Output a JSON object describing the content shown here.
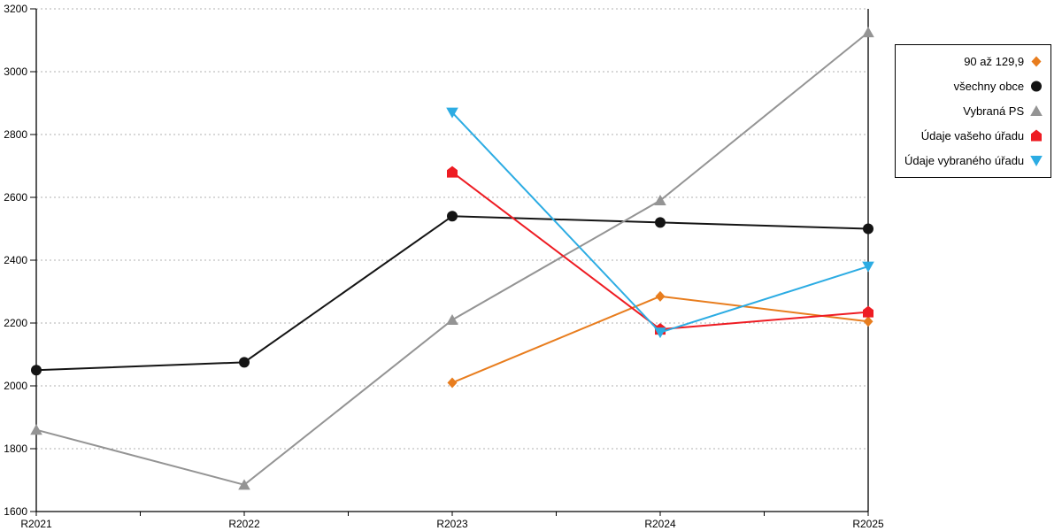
{
  "chart_data": {
    "type": "line",
    "title": "",
    "xlabel": "",
    "ylabel": "",
    "categories": [
      "R2021",
      "R2022",
      "R2023",
      "R2024",
      "R2025"
    ],
    "yticks": [
      1600,
      1800,
      2000,
      2200,
      2400,
      2600,
      2800,
      3000,
      3200
    ],
    "ylim": [
      1600,
      3200
    ],
    "grid": "horizontal-dotted",
    "legend_position": "right-box",
    "series": [
      {
        "name": "90 až 129,9",
        "marker": "diamond",
        "color": "#E87D1E",
        "values": [
          null,
          null,
          2010,
          2285,
          2205
        ]
      },
      {
        "name": "všechny obce",
        "marker": "circle",
        "color": "#141414",
        "values": [
          2050,
          2075,
          2540,
          2520,
          2500
        ]
      },
      {
        "name": "Vybraná PS",
        "marker": "triangle-up",
        "color": "#949494",
        "values": [
          1860,
          1685,
          2210,
          2590,
          3125
        ]
      },
      {
        "name": "Údaje vašeho úřadu",
        "marker": "pentagon",
        "color": "#EE1C23",
        "values": [
          null,
          null,
          2680,
          2180,
          2235
        ]
      },
      {
        "name": "Údaje vybraného úřadu",
        "marker": "triangle-down",
        "color": "#2CACE3",
        "values": [
          null,
          null,
          2870,
          2170,
          2380
        ]
      }
    ],
    "colors": {
      "axis": "#000000",
      "grid": "#b0b0b0",
      "background": "#ffffff",
      "text": "#000000"
    }
  }
}
